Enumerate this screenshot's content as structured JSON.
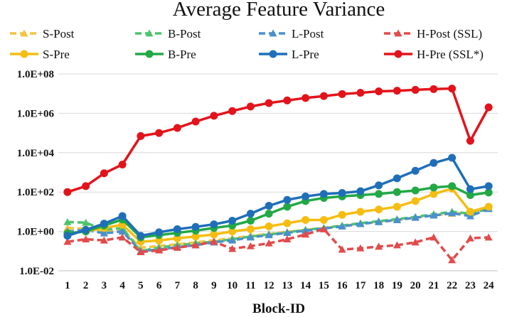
{
  "chart_data": {
    "type": "line",
    "title": "Average Feature Variance",
    "xlabel": "Block-ID",
    "ylabel": "",
    "yscale": "log",
    "ylim": [
      0.01,
      100000000
    ],
    "y_ticks": [
      0.01,
      1,
      100,
      10000,
      1000000,
      100000000
    ],
    "y_tick_labels": [
      "1.0E-02",
      "1.0E+00",
      "1.0E+02",
      "1.0E+04",
      "1.0E+06",
      "1.0E+08"
    ],
    "grid": "horizontal",
    "legend_position": "top",
    "x": [
      1,
      2,
      3,
      4,
      5,
      6,
      7,
      8,
      9,
      10,
      11,
      12,
      13,
      14,
      15,
      16,
      17,
      18,
      19,
      20,
      21,
      22,
      23,
      24
    ],
    "x_tick_labels": [
      "1",
      "2",
      "3",
      "4",
      "5",
      "6",
      "7",
      "8",
      "9",
      "10",
      "11",
      "12",
      "13",
      "14",
      "15",
      "16",
      "17",
      "18",
      "19",
      "20",
      "21",
      "22",
      "23",
      "24"
    ],
    "series": [
      {
        "name": "S-Post",
        "color": "#f5c342",
        "dashed": true,
        "marker": "triangle",
        "values": [
          1.5,
          1.4,
          0.9,
          1.2,
          0.15,
          0.18,
          0.22,
          0.28,
          0.35,
          0.45,
          0.6,
          0.75,
          0.95,
          1.2,
          1.5,
          1.9,
          2.5,
          3.0,
          3.8,
          5.0,
          6.5,
          8.0,
          9.0,
          16
        ]
      },
      {
        "name": "B-Post",
        "color": "#4cc46c",
        "dashed": true,
        "marker": "triangle",
        "values": [
          3.0,
          2.8,
          1.2,
          1.5,
          0.1,
          0.15,
          0.2,
          0.25,
          0.3,
          0.4,
          0.55,
          0.7,
          0.9,
          1.2,
          1.5,
          2.0,
          2.6,
          3.3,
          4.2,
          5.5,
          7.5,
          10,
          8,
          14
        ]
      },
      {
        "name": "L-Post",
        "color": "#4a8fcf",
        "dashed": true,
        "marker": "triangle",
        "values": [
          1.0,
          1.2,
          0.8,
          1.0,
          0.1,
          0.12,
          0.16,
          0.2,
          0.28,
          0.35,
          0.5,
          0.65,
          0.85,
          1.1,
          1.4,
          1.8,
          2.4,
          3.0,
          3.8,
          5.0,
          6.5,
          8.5,
          6.0,
          14
        ]
      },
      {
        "name": "H-Post (SSL)",
        "color": "#e24b4b",
        "dashed": true,
        "marker": "triangle",
        "values": [
          0.3,
          0.4,
          0.35,
          0.5,
          0.09,
          0.11,
          0.15,
          0.2,
          0.3,
          0.13,
          0.18,
          0.25,
          0.4,
          0.7,
          1.3,
          0.12,
          0.14,
          0.17,
          0.2,
          0.28,
          0.5,
          0.035,
          0.45,
          0.5
        ]
      },
      {
        "name": "S-Pre",
        "color": "#f5bd12",
        "dashed": false,
        "marker": "circle",
        "values": [
          0.8,
          1.0,
          1.5,
          2.2,
          0.3,
          0.35,
          0.45,
          0.55,
          0.7,
          1.0,
          1.3,
          1.8,
          2.6,
          3.8,
          3.8,
          7.0,
          10,
          13,
          18,
          35,
          80,
          150,
          10,
          18
        ]
      },
      {
        "name": "B-Pre",
        "color": "#22a845",
        "dashed": false,
        "marker": "circle",
        "values": [
          0.8,
          1.0,
          2.0,
          4.0,
          0.5,
          0.65,
          0.85,
          1.1,
          1.5,
          2.0,
          3.5,
          8.0,
          18,
          35,
          50,
          60,
          70,
          80,
          100,
          120,
          170,
          200,
          70,
          95
        ]
      },
      {
        "name": "L-Pre",
        "color": "#1f6fb8",
        "dashed": false,
        "marker": "circle",
        "values": [
          0.6,
          1.2,
          2.5,
          6.0,
          0.6,
          0.9,
          1.3,
          1.7,
          2.3,
          3.5,
          8.0,
          20,
          40,
          60,
          80,
          90,
          110,
          220,
          500,
          1200,
          3000,
          5500,
          140,
          200
        ]
      },
      {
        "name": "H-Pre (SSL*)",
        "color": "#e3131b",
        "dashed": false,
        "marker": "circle",
        "values": [
          100,
          200,
          900,
          2500,
          70000,
          100000,
          180000,
          380000,
          750000,
          1300000,
          2200000,
          3300000,
          4500000,
          6000000,
          7500000,
          9500000,
          11000000,
          13000000,
          14000000,
          15500000,
          17000000,
          18000000,
          40000,
          2000000
        ]
      }
    ]
  }
}
